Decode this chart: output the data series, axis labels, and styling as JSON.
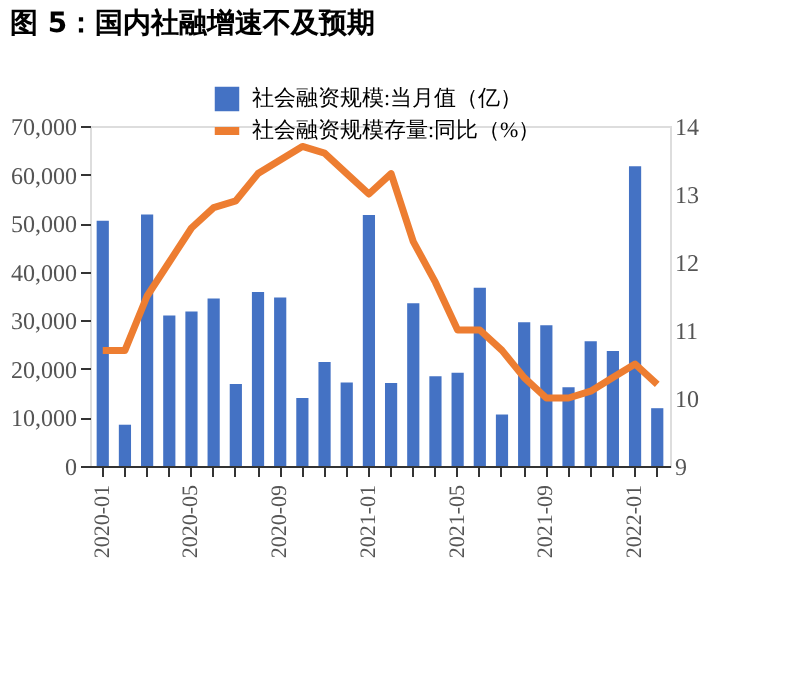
{
  "chart_data": {
    "type": "bar",
    "title": "图 5：国内社融增速不及预期",
    "categories": [
      "2020-01",
      null,
      null,
      null,
      "2020-05",
      null,
      null,
      null,
      "2020-09",
      null,
      null,
      null,
      "2021-01",
      null,
      null,
      null,
      "2021-05",
      null,
      null,
      null,
      "2021-09",
      null,
      null,
      null,
      "2022-01",
      null
    ],
    "series": [
      {
        "name": "社会融资规模:当月值（亿）",
        "color": "#4472c4",
        "values": [
          50500,
          8500,
          51800,
          31000,
          31800,
          34500,
          16900,
          35800,
          34700,
          14000,
          21400,
          17200,
          51700,
          17100,
          33500,
          18500,
          19200,
          36700,
          10600,
          29600,
          29000,
          16200,
          25700,
          23700,
          61700,
          11900
        ]
      },
      {
        "name": "社会融资规模存量:同比（%）",
        "type": "line",
        "axis": "y2",
        "color": "#ed7d31",
        "values": [
          10.7,
          10.7,
          11.5,
          12.0,
          12.5,
          12.8,
          12.9,
          13.3,
          13.5,
          13.7,
          13.6,
          13.3,
          13.0,
          13.3,
          12.3,
          11.7,
          11.0,
          11.0,
          10.7,
          10.3,
          10.0,
          10.0,
          10.1,
          10.3,
          10.5,
          10.2
        ]
      }
    ],
    "ylim": [
      0,
      70000
    ],
    "yticks": [
      0,
      {
        "value": 10000,
        "label": "10,000"
      },
      {
        "value": 20000,
        "label": "20,000"
      },
      {
        "value": 30000,
        "label": "30,000"
      },
      {
        "value": 40000,
        "label": "40,000"
      },
      {
        "value": 50000,
        "label": "50,000"
      },
      {
        "value": 60000,
        "label": "60,000"
      },
      {
        "value": 70000,
        "label": "70,000"
      }
    ],
    "y2lim": [
      9,
      14
    ],
    "y2ticks": [
      9,
      10,
      11,
      12,
      13,
      14
    ],
    "legend": "top",
    "grid": false,
    "marker": "none",
    "line_style": "solid"
  }
}
